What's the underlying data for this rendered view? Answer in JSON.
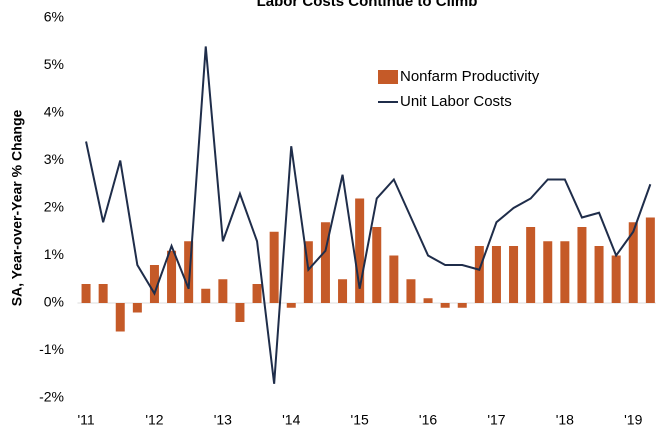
{
  "chart_data": {
    "type": "bar_line",
    "title": "Labor Costs Continue to Climb",
    "y_label": "SA, Year-over-Year  % Change",
    "categories": [
      "'11",
      null,
      null,
      null,
      "'12",
      null,
      null,
      null,
      "'13",
      null,
      null,
      null,
      "'14",
      null,
      null,
      null,
      "'15",
      null,
      null,
      null,
      "'16",
      null,
      null,
      null,
      "'17",
      null,
      null,
      null,
      "'18",
      null,
      null,
      null,
      "'19",
      null
    ],
    "series": [
      {
        "name": "Nonfarm Productivity",
        "type": "bar",
        "color": "#c55a28",
        "values": [
          0.4,
          0.4,
          -0.6,
          -0.2,
          0.8,
          1.1,
          1.3,
          0.3,
          0.5,
          -0.4,
          0.4,
          1.5,
          -0.1,
          1.3,
          1.7,
          0.5,
          2.2,
          1.6,
          1.0,
          0.5,
          0.1,
          -0.1,
          -0.1,
          1.2,
          1.2,
          1.2,
          1.6,
          1.3,
          1.3,
          1.6,
          1.2,
          1.0,
          1.7,
          1.8
        ]
      },
      {
        "name": "Unit Labor Costs",
        "type": "line",
        "color": "#1f2d4a",
        "values": [
          3.4,
          1.7,
          3.0,
          0.8,
          0.2,
          1.2,
          0.3,
          5.4,
          1.3,
          2.3,
          1.3,
          -1.7,
          3.3,
          0.7,
          1.1,
          2.7,
          0.3,
          2.2,
          2.6,
          1.8,
          1.0,
          0.8,
          0.8,
          0.7,
          1.7,
          2.0,
          2.2,
          2.6,
          2.6,
          1.8,
          1.9,
          1.0,
          1.5,
          2.5
        ]
      }
    ],
    "ylim": [
      -2,
      6
    ],
    "yticks": [
      {
        "value": -2,
        "label": "-2%"
      },
      {
        "value": -1,
        "label": "-1%"
      },
      {
        "value": 0,
        "label": "0%"
      },
      {
        "value": 1,
        "label": "1%"
      },
      {
        "value": 2,
        "label": "2%"
      },
      {
        "value": 3,
        "label": "3%"
      },
      {
        "value": 4,
        "label": "4%"
      },
      {
        "value": 5,
        "label": "5%"
      },
      {
        "value": 6,
        "label": "6%"
      }
    ],
    "grid": false,
    "legend": "upper right"
  }
}
